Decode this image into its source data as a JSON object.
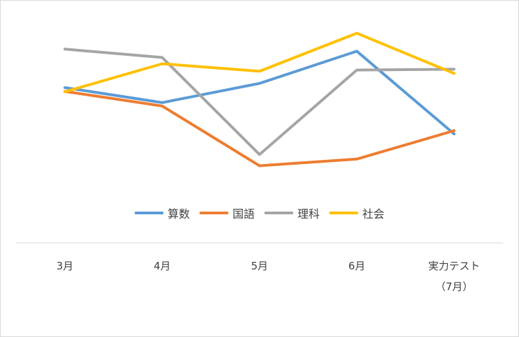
{
  "chart_data": {
    "type": "line",
    "categories": [
      [
        "3月"
      ],
      [
        "4月"
      ],
      [
        "5月"
      ],
      [
        "6月"
      ],
      [
        "実力テスト",
        "（7月）"
      ]
    ],
    "series": [
      {
        "name": "算数",
        "color": "#5b9bd5",
        "values": [
          58.5,
          54.9,
          59.5,
          67.2,
          47.4
        ]
      },
      {
        "name": "国語",
        "color": "#ed7d31",
        "values": [
          57.6,
          54.1,
          39.8,
          41.4,
          48.2
        ]
      },
      {
        "name": "理科",
        "color": "#a5a5a5",
        "values": [
          67.7,
          65.7,
          42.5,
          62.7,
          62.9
        ]
      },
      {
        "name": "社会",
        "color": "#ffc000",
        "values": [
          57.5,
          64.2,
          62.4,
          71.5,
          61.9
        ]
      }
    ],
    "ylim": [
      30,
      75
    ],
    "grid": false,
    "legend_position": "bottom"
  }
}
